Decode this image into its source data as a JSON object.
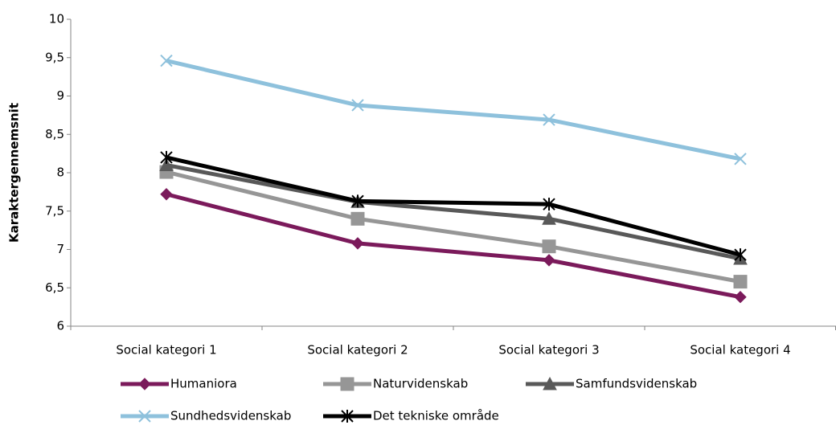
{
  "chart_data": {
    "type": "line",
    "y_label": "Karaktergennemsnit",
    "categories": [
      "Social kategori 1",
      "Social kategori 2",
      "Social kategori 3",
      "Social kategori 4"
    ],
    "series": [
      {
        "name": "Humaniora",
        "color": "#7b1a5b",
        "marker": "diamond",
        "values": [
          7.72,
          7.08,
          6.86,
          6.38
        ]
      },
      {
        "name": "Naturvidenskab",
        "color": "#969696",
        "marker": "square",
        "values": [
          8.01,
          7.4,
          7.04,
          6.58
        ]
      },
      {
        "name": "Samfundsvidenskab",
        "color": "#595959",
        "marker": "triangle",
        "values": [
          8.1,
          7.62,
          7.4,
          6.88
        ]
      },
      {
        "name": "Sundhedsvidenskab",
        "color": "#8ec1dc",
        "marker": "x",
        "values": [
          9.46,
          8.88,
          8.69,
          8.18
        ]
      },
      {
        "name": "Det tekniske område",
        "color": "#000000",
        "marker": "star",
        "values": [
          8.2,
          7.63,
          7.59,
          6.93
        ]
      }
    ],
    "ylim": [
      6,
      10
    ],
    "yticks": [
      6,
      {
        "value": 6.5,
        "label": "6,5"
      },
      7,
      {
        "value": 7.5,
        "label": "7,5"
      },
      8,
      {
        "value": 8.5,
        "label": "8,5"
      },
      9,
      {
        "value": 9.5,
        "label": "9,5"
      },
      10
    ],
    "legend": "bottom"
  }
}
